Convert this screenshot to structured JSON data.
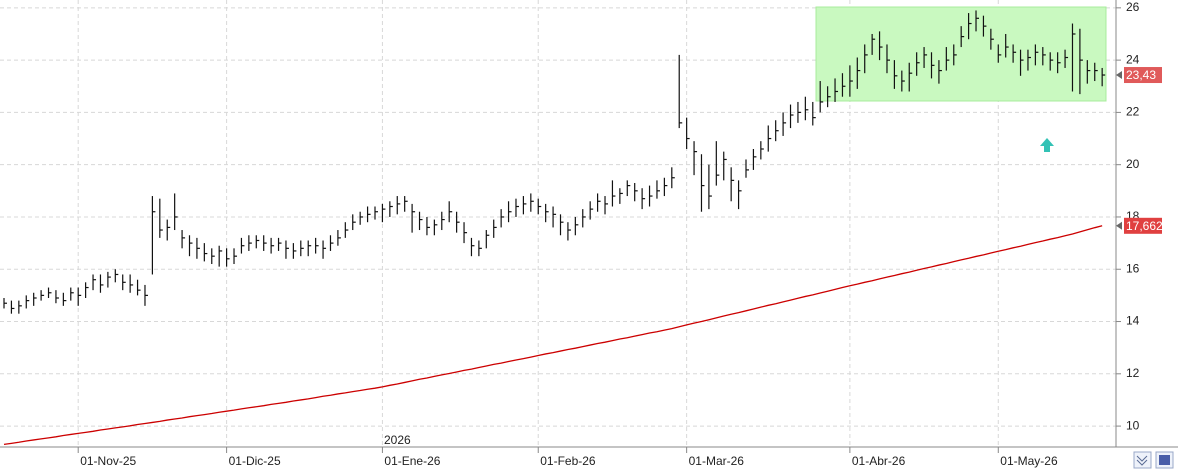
{
  "chart_data": {
    "type": "ohlc",
    "categories": [
      null,
      null,
      null,
      null,
      null,
      null,
      null,
      null,
      null,
      null,
      "01-Nov-25",
      null,
      null,
      null,
      null,
      null,
      null,
      null,
      null,
      null,
      null,
      null,
      null,
      null,
      null,
      null,
      null,
      null,
      null,
      null,
      "01-Dic-25",
      null,
      null,
      null,
      null,
      null,
      null,
      null,
      null,
      null,
      null,
      null,
      null,
      null,
      null,
      null,
      null,
      null,
      null,
      null,
      null,
      "01-Ene-26",
      null,
      null,
      null,
      null,
      null,
      null,
      null,
      null,
      null,
      null,
      null,
      null,
      null,
      null,
      null,
      null,
      null,
      null,
      null,
      null,
      "01-Feb-26",
      null,
      null,
      null,
      null,
      null,
      null,
      null,
      null,
      null,
      null,
      null,
      null,
      null,
      null,
      null,
      null,
      null,
      null,
      null,
      "01-Mar-26",
      null,
      null,
      null,
      null,
      null,
      null,
      null,
      null,
      null,
      null,
      null,
      null,
      null,
      null,
      null,
      null,
      null,
      null,
      null,
      null,
      null,
      "01-Abr-26",
      null,
      null,
      null,
      null,
      null,
      null,
      null,
      null,
      null,
      null,
      null,
      null,
      null,
      null,
      null,
      null,
      null,
      null,
      null,
      "01-May-26",
      null,
      null,
      null,
      null,
      null,
      null,
      null,
      null,
      null,
      null,
      null,
      null,
      null,
      null
    ],
    "high": [
      14.9,
      14.8,
      14.8,
      15.0,
      15.1,
      15.2,
      15.3,
      15.2,
      15.1,
      15.3,
      15.3,
      15.5,
      15.8,
      15.8,
      15.9,
      16.0,
      15.8,
      15.8,
      15.6,
      15.4,
      18.8,
      18.7,
      17.9,
      18.9,
      17.5,
      17.3,
      17.2,
      17.0,
      16.8,
      16.9,
      16.8,
      16.8,
      17.2,
      17.3,
      17.3,
      17.3,
      17.2,
      17.2,
      17.1,
      17.0,
      17.1,
      17.1,
      17.2,
      17.1,
      17.3,
      17.5,
      17.8,
      18.1,
      18.2,
      18.4,
      18.4,
      18.5,
      18.6,
      18.8,
      18.8,
      18.5,
      18.2,
      18.0,
      17.9,
      18.2,
      18.6,
      18.2,
      17.8,
      17.2,
      17.1,
      17.5,
      17.9,
      18.3,
      18.6,
      18.7,
      18.8,
      18.9,
      18.7,
      18.5,
      18.4,
      18.1,
      17.8,
      18.0,
      18.3,
      18.6,
      18.9,
      18.8,
      19.4,
      19.1,
      19.4,
      19.3,
      19.1,
      19.2,
      19.4,
      19.5,
      19.9,
      24.2,
      21.8,
      20.9,
      20.4,
      20.0,
      20.9,
      20.5,
      19.9,
      19.4,
      20.2,
      20.6,
      20.9,
      21.5,
      21.7,
      22.0,
      22.3,
      22.4,
      22.6,
      22.4,
      23.2,
      23.0,
      23.3,
      23.5,
      23.8,
      24.1,
      24.6,
      25.0,
      25.1,
      24.6,
      24.0,
      23.6,
      23.9,
      24.3,
      24.5,
      24.3,
      24.0,
      24.5,
      24.6,
      25.3,
      25.8,
      25.9,
      25.7,
      25.2,
      24.6,
      25.0,
      24.6,
      24.4,
      24.4,
      24.6,
      24.5,
      24.3,
      24.3,
      24.4,
      25.4,
      25.2,
      24.0,
      23.9,
      23.7
    ],
    "low": [
      14.5,
      14.3,
      14.3,
      14.5,
      14.6,
      14.8,
      14.9,
      14.7,
      14.6,
      14.8,
      14.6,
      14.9,
      15.2,
      15.1,
      15.3,
      15.5,
      15.2,
      15.1,
      15.0,
      14.6,
      15.8,
      17.2,
      17.1,
      17.5,
      16.8,
      16.5,
      16.4,
      16.3,
      16.2,
      16.1,
      16.1,
      16.2,
      16.6,
      16.7,
      16.8,
      16.7,
      16.6,
      16.7,
      16.4,
      16.4,
      16.5,
      16.5,
      16.6,
      16.4,
      16.7,
      16.9,
      17.2,
      17.5,
      17.7,
      17.8,
      17.9,
      17.8,
      18.0,
      18.1,
      18.2,
      17.4,
      17.5,
      17.3,
      17.3,
      17.5,
      17.8,
      17.4,
      17.0,
      16.5,
      16.5,
      16.8,
      17.2,
      17.6,
      17.8,
      18.0,
      18.1,
      18.2,
      18.1,
      17.8,
      17.6,
      17.3,
      17.1,
      17.3,
      17.6,
      17.9,
      18.2,
      18.1,
      18.4,
      18.5,
      18.8,
      18.6,
      18.3,
      18.4,
      18.7,
      18.8,
      19.1,
      21.4,
      20.6,
      19.6,
      18.2,
      18.3,
      19.2,
      19.4,
      18.6,
      18.3,
      19.5,
      19.8,
      20.2,
      20.5,
      20.9,
      21.1,
      21.4,
      21.6,
      21.7,
      21.5,
      22.0,
      22.2,
      22.4,
      22.6,
      22.6,
      22.9,
      23.5,
      24.2,
      24.0,
      23.5,
      22.9,
      22.8,
      22.8,
      23.4,
      23.7,
      23.3,
      23.1,
      23.6,
      23.8,
      24.5,
      24.8,
      25.1,
      24.9,
      24.4,
      23.9,
      24.1,
      23.9,
      23.4,
      23.6,
      23.8,
      23.8,
      23.6,
      23.5,
      23.7,
      22.8,
      22.7,
      23.1,
      23.2,
      23.0
    ],
    "close": [
      14.7,
      14.5,
      14.6,
      14.8,
      14.9,
      15.0,
      15.1,
      14.9,
      14.8,
      15.1,
      15.0,
      15.3,
      15.6,
      15.4,
      15.7,
      15.8,
      15.5,
      15.4,
      15.2,
      15.0,
      18.2,
      17.5,
      17.6,
      18.0,
      17.2,
      17.0,
      16.8,
      16.6,
      16.5,
      16.7,
      16.4,
      16.5,
      16.9,
      17.0,
      17.1,
      17.0,
      16.9,
      17.0,
      16.8,
      16.7,
      16.8,
      16.9,
      16.9,
      16.8,
      17.0,
      17.2,
      17.5,
      17.8,
      18.0,
      18.1,
      18.2,
      18.3,
      18.4,
      18.5,
      18.6,
      18.2,
      17.9,
      17.6,
      17.7,
      17.9,
      18.2,
      17.8,
      17.4,
      16.9,
      16.8,
      17.3,
      17.6,
      18.0,
      18.2,
      18.4,
      18.5,
      18.6,
      18.4,
      18.2,
      18.1,
      17.8,
      17.5,
      17.7,
      18.0,
      18.3,
      18.6,
      18.5,
      18.8,
      18.9,
      19.2,
      19.0,
      18.7,
      18.8,
      19.0,
      19.2,
      19.5,
      21.6,
      21.0,
      20.5,
      19.2,
      18.8,
      19.6,
      20.2,
      19.4,
      19.0,
      19.8,
      20.3,
      20.6,
      21.0,
      21.3,
      21.6,
      21.9,
      22.0,
      22.1,
      21.8,
      22.4,
      22.6,
      22.8,
      23.0,
      23.2,
      23.6,
      24.2,
      24.8,
      24.5,
      24.0,
      23.4,
      23.2,
      23.5,
      23.9,
      24.2,
      23.8,
      23.6,
      24.0,
      24.2,
      24.9,
      25.4,
      25.6,
      25.3,
      24.8,
      24.2,
      24.5,
      24.3,
      24.0,
      24.1,
      24.3,
      24.2,
      24.0,
      23.9,
      24.1,
      25.0,
      24.0,
      23.6,
      23.6,
      23.43
    ],
    "color": "#111111",
    "moving_average": {
      "color": "#cc0000",
      "values": [
        9.3,
        9.34,
        9.38,
        9.43,
        9.47,
        9.51,
        9.55,
        9.59,
        9.64,
        9.68,
        9.72,
        9.76,
        9.8,
        9.85,
        9.89,
        9.93,
        9.97,
        10.01,
        10.06,
        10.1,
        10.14,
        10.18,
        10.23,
        10.27,
        10.31,
        10.36,
        10.4,
        10.44,
        10.48,
        10.53,
        10.57,
        10.61,
        10.66,
        10.7,
        10.74,
        10.78,
        10.83,
        10.87,
        10.91,
        10.96,
        11.0,
        11.04,
        11.09,
        11.14,
        11.18,
        11.23,
        11.27,
        11.32,
        11.36,
        11.41,
        11.45,
        11.5,
        11.56,
        11.61,
        11.67,
        11.73,
        11.79,
        11.84,
        11.9,
        11.96,
        12.01,
        12.07,
        12.13,
        12.18,
        12.24,
        12.3,
        12.36,
        12.41,
        12.47,
        12.53,
        12.58,
        12.64,
        12.7,
        12.76,
        12.81,
        12.87,
        12.93,
        12.98,
        13.04,
        13.1,
        13.16,
        13.21,
        13.27,
        13.33,
        13.38,
        13.44,
        13.5,
        13.56,
        13.61,
        13.67,
        13.73,
        13.8,
        13.87,
        13.94,
        14.0,
        14.07,
        14.14,
        14.21,
        14.28,
        14.34,
        14.41,
        14.48,
        14.55,
        14.62,
        14.68,
        14.75,
        14.82,
        14.89,
        14.96,
        15.02,
        15.09,
        15.16,
        15.23,
        15.3,
        15.37,
        15.43,
        15.5,
        15.56,
        15.63,
        15.7,
        15.76,
        15.83,
        15.89,
        15.96,
        16.03,
        16.09,
        16.16,
        16.22,
        16.29,
        16.36,
        16.42,
        16.49,
        16.55,
        16.62,
        16.69,
        16.75,
        16.82,
        16.88,
        16.95,
        17.02,
        17.08,
        17.15,
        17.21,
        17.28,
        17.35,
        17.43,
        17.51,
        17.59,
        17.662
      ]
    },
    "price_tags": [
      {
        "value": 23.43,
        "label": "23,43",
        "color": "#e05a5a"
      },
      {
        "value": 17.662,
        "label": "17,662",
        "color": "#e04040"
      }
    ],
    "year_label": "2026",
    "ylim": [
      9.2,
      26.3
    ],
    "yticks": [
      10,
      12,
      14,
      16,
      18,
      20,
      22,
      24,
      26
    ],
    "grid": true
  }
}
